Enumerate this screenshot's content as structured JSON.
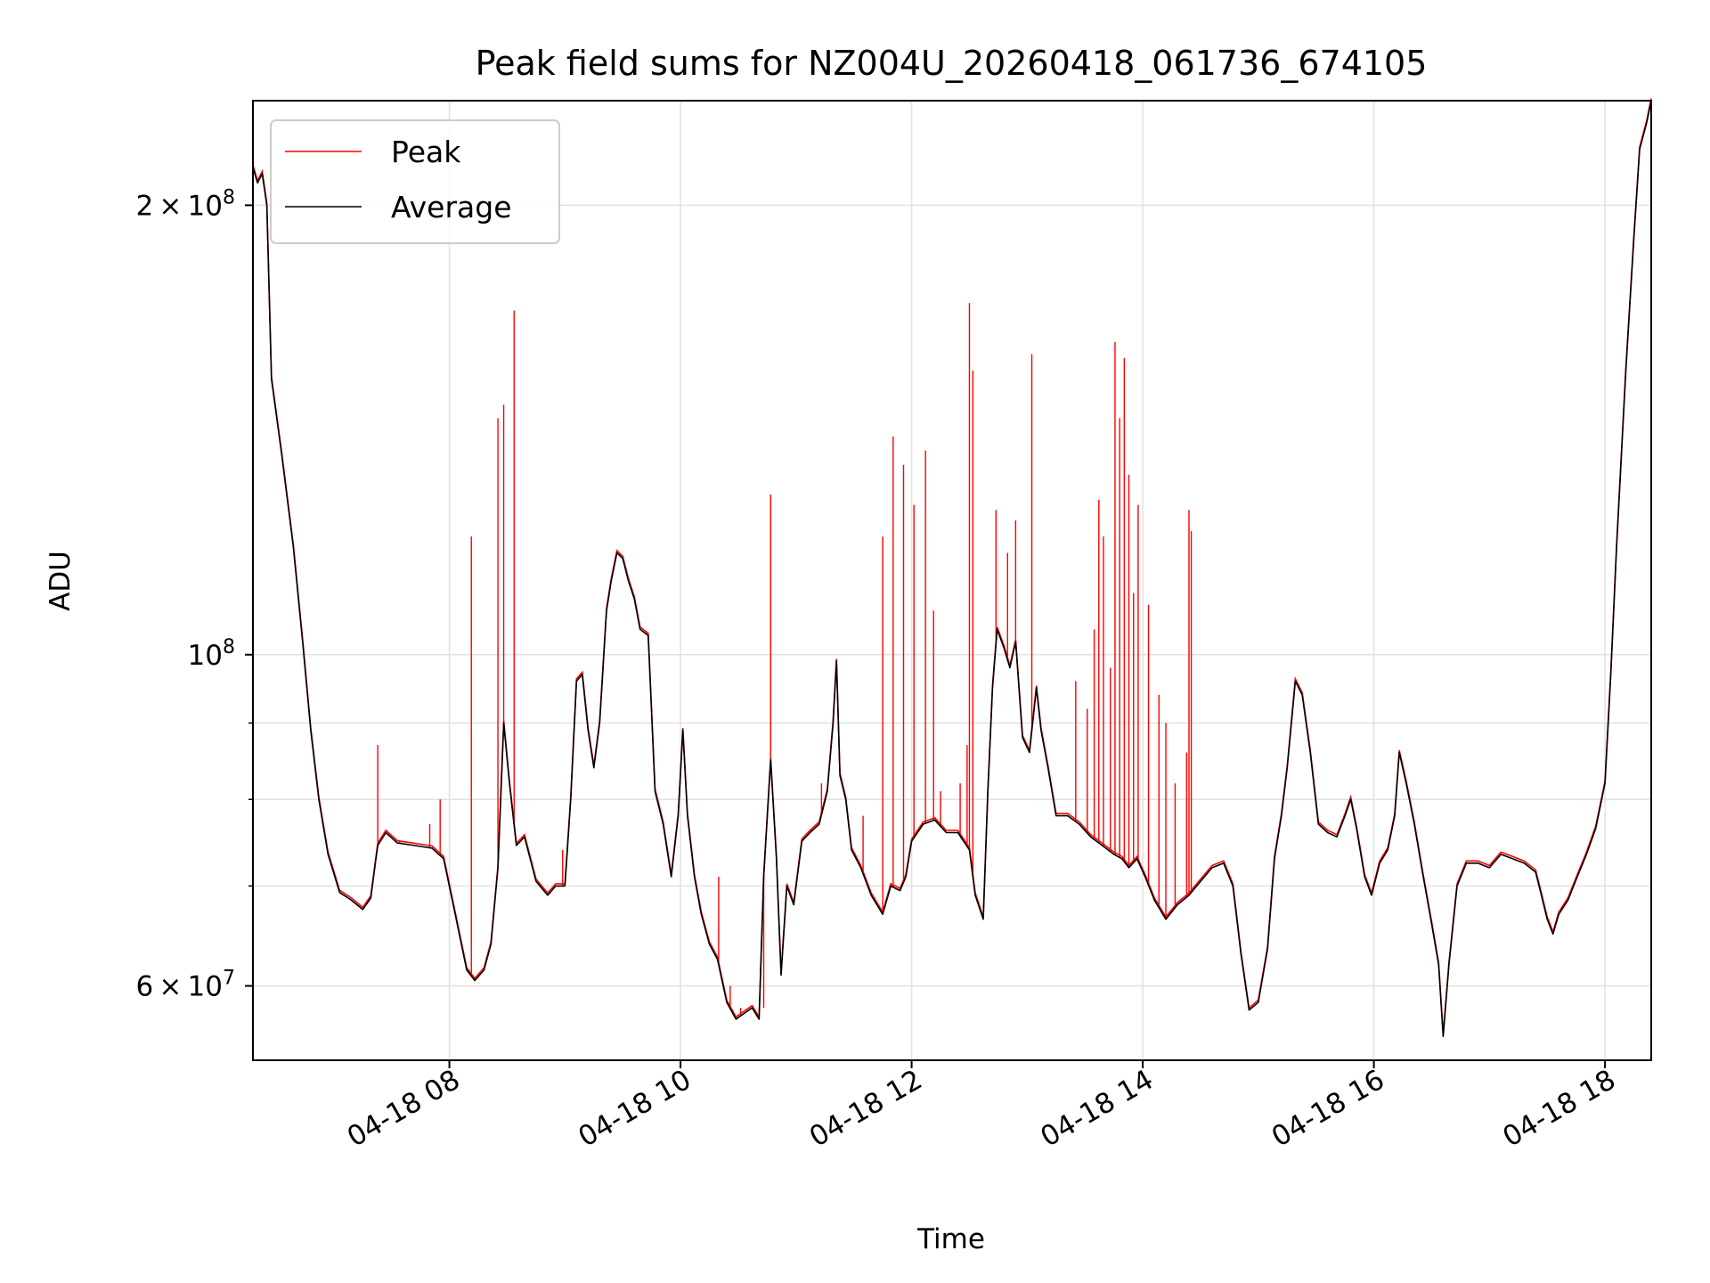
{
  "chart_data": {
    "type": "line",
    "title": "Peak field sums for NZ004U_20260418_061736_674105",
    "xlabel": "Time",
    "ylabel": "ADU",
    "yscale": "log",
    "xlim_hours": [
      6.3,
      18.4
    ],
    "ylim": [
      53500000,
      235000000
    ],
    "grid": true,
    "legend_position": "upper-left",
    "x_ticks": [
      {
        "hour": 8,
        "label": "04-18 08"
      },
      {
        "hour": 10,
        "label": "04-18 10"
      },
      {
        "hour": 12,
        "label": "04-18 12"
      },
      {
        "hour": 14,
        "label": "04-18 14"
      },
      {
        "hour": 16,
        "label": "04-18 16"
      },
      {
        "hour": 18,
        "label": "04-18 18"
      }
    ],
    "y_ticks": [
      {
        "value": 60000000,
        "mantissa": "6",
        "exponent": "7"
      },
      {
        "value": 100000000,
        "mantissa": "",
        "exponent": "8"
      },
      {
        "value": 200000000,
        "mantissa": "2",
        "exponent": "8"
      }
    ],
    "y_minor_ticks": [
      70000000,
      80000000,
      90000000
    ],
    "series": [
      {
        "name": "Peak",
        "color": "#ff0000",
        "spikes": [
          [
            7.38,
            87000000
          ],
          [
            7.57,
            75000000
          ],
          [
            7.83,
            77000000
          ],
          [
            7.92,
            80000000
          ],
          [
            8.19,
            120000000
          ],
          [
            8.42,
            144000000
          ],
          [
            8.47,
            147000000
          ],
          [
            8.56,
            170000000
          ],
          [
            8.98,
            74000000
          ],
          [
            10.33,
            71000000
          ],
          [
            10.43,
            60000000
          ],
          [
            10.52,
            58000000
          ],
          [
            10.72,
            58000000
          ],
          [
            10.78,
            128000000
          ],
          [
            11.22,
            82000000
          ],
          [
            11.58,
            78000000
          ],
          [
            11.75,
            120000000
          ],
          [
            11.84,
            140000000
          ],
          [
            11.93,
            134000000
          ],
          [
            12.02,
            126000000
          ],
          [
            12.12,
            137000000
          ],
          [
            12.19,
            107000000
          ],
          [
            12.25,
            81000000
          ],
          [
            12.42,
            82000000
          ],
          [
            12.48,
            87000000
          ],
          [
            12.5,
            172000000
          ],
          [
            12.53,
            155000000
          ],
          [
            12.73,
            125000000
          ],
          [
            12.83,
            117000000
          ],
          [
            12.9,
            123000000
          ],
          [
            13.04,
            159000000
          ],
          [
            13.42,
            96000000
          ],
          [
            13.52,
            92000000
          ],
          [
            13.58,
            104000000
          ],
          [
            13.62,
            127000000
          ],
          [
            13.66,
            120000000
          ],
          [
            13.72,
            98000000
          ],
          [
            13.76,
            162000000
          ],
          [
            13.8,
            144000000
          ],
          [
            13.84,
            158000000
          ],
          [
            13.88,
            132000000
          ],
          [
            13.92,
            110000000
          ],
          [
            13.96,
            126000000
          ],
          [
            14.05,
            108000000
          ],
          [
            14.14,
            94000000
          ],
          [
            14.2,
            90000000
          ],
          [
            14.28,
            82000000
          ],
          [
            14.38,
            86000000
          ],
          [
            14.4,
            125000000
          ],
          [
            14.42,
            121000000
          ]
        ]
      },
      {
        "name": "Average",
        "color": "#000000",
        "points": [
          [
            6.3,
            212000000
          ],
          [
            6.34,
            207000000
          ],
          [
            6.38,
            210000000
          ],
          [
            6.42,
            200000000
          ],
          [
            6.46,
            153000000
          ],
          [
            6.55,
            136000000
          ],
          [
            6.65,
            118000000
          ],
          [
            6.73,
            102000000
          ],
          [
            6.8,
            89000000
          ],
          [
            6.87,
            80000000
          ],
          [
            6.95,
            73500000
          ],
          [
            7.05,
            69300000
          ],
          [
            7.15,
            68500000
          ],
          [
            7.25,
            67500000
          ],
          [
            7.32,
            68700000
          ],
          [
            7.38,
            74500000
          ],
          [
            7.45,
            76000000
          ],
          [
            7.55,
            74800000
          ],
          [
            7.7,
            74500000
          ],
          [
            7.85,
            74200000
          ],
          [
            7.95,
            73000000
          ],
          [
            8.05,
            67000000
          ],
          [
            8.15,
            61500000
          ],
          [
            8.22,
            60500000
          ],
          [
            8.3,
            61500000
          ],
          [
            8.36,
            64000000
          ],
          [
            8.42,
            72000000
          ],
          [
            8.47,
            90000000
          ],
          [
            8.52,
            82000000
          ],
          [
            8.58,
            74500000
          ],
          [
            8.65,
            75500000
          ],
          [
            8.75,
            70500000
          ],
          [
            8.85,
            69000000
          ],
          [
            8.92,
            70000000
          ],
          [
            9.0,
            70000000
          ],
          [
            9.05,
            80000000
          ],
          [
            9.1,
            96000000
          ],
          [
            9.15,
            97000000
          ],
          [
            9.2,
            89000000
          ],
          [
            9.25,
            84000000
          ],
          [
            9.3,
            90000000
          ],
          [
            9.36,
            107000000
          ],
          [
            9.4,
            112000000
          ],
          [
            9.45,
            117000000
          ],
          [
            9.5,
            116000000
          ],
          [
            9.55,
            112000000
          ],
          [
            9.6,
            109000000
          ],
          [
            9.65,
            104000000
          ],
          [
            9.72,
            103000000
          ],
          [
            9.78,
            81000000
          ],
          [
            9.85,
            77000000
          ],
          [
            9.92,
            71000000
          ],
          [
            9.98,
            78000000
          ],
          [
            10.02,
            89000000
          ],
          [
            10.06,
            78000000
          ],
          [
            10.12,
            71000000
          ],
          [
            10.18,
            67000000
          ],
          [
            10.25,
            64000000
          ],
          [
            10.32,
            62500000
          ],
          [
            10.4,
            58500000
          ],
          [
            10.48,
            57000000
          ],
          [
            10.55,
            57500000
          ],
          [
            10.62,
            58000000
          ],
          [
            10.68,
            57000000
          ],
          [
            10.72,
            71000000
          ],
          [
            10.78,
            85000000
          ],
          [
            10.83,
            73000000
          ],
          [
            10.87,
            61000000
          ],
          [
            10.92,
            70000000
          ],
          [
            10.98,
            68000000
          ],
          [
            11.05,
            75000000
          ],
          [
            11.12,
            76000000
          ],
          [
            11.2,
            77000000
          ],
          [
            11.27,
            81000000
          ],
          [
            11.32,
            90000000
          ],
          [
            11.35,
            99000000
          ],
          [
            11.38,
            83000000
          ],
          [
            11.43,
            80000000
          ],
          [
            11.48,
            74000000
          ],
          [
            11.56,
            72000000
          ],
          [
            11.65,
            69000000
          ],
          [
            11.75,
            67000000
          ],
          [
            11.82,
            70000000
          ],
          [
            11.9,
            69500000
          ],
          [
            11.95,
            71000000
          ],
          [
            12.0,
            75000000
          ],
          [
            12.1,
            77000000
          ],
          [
            12.2,
            77500000
          ],
          [
            12.3,
            76000000
          ],
          [
            12.4,
            76000000
          ],
          [
            12.5,
            74000000
          ],
          [
            12.55,
            69000000
          ],
          [
            12.62,
            66500000
          ],
          [
            12.66,
            81000000
          ],
          [
            12.7,
            95000000
          ],
          [
            12.74,
            104000000
          ],
          [
            12.8,
            101000000
          ],
          [
            12.85,
            98000000
          ],
          [
            12.9,
            102000000
          ],
          [
            12.96,
            88000000
          ],
          [
            13.02,
            86000000
          ],
          [
            13.08,
            95000000
          ],
          [
            13.12,
            89000000
          ],
          [
            13.18,
            84000000
          ],
          [
            13.25,
            78000000
          ],
          [
            13.35,
            78000000
          ],
          [
            13.45,
            77000000
          ],
          [
            13.55,
            75500000
          ],
          [
            13.65,
            74500000
          ],
          [
            13.75,
            73500000
          ],
          [
            13.82,
            73000000
          ],
          [
            13.88,
            72000000
          ],
          [
            13.95,
            73000000
          ],
          [
            14.02,
            71000000
          ],
          [
            14.1,
            68500000
          ],
          [
            14.2,
            66500000
          ],
          [
            14.3,
            68000000
          ],
          [
            14.4,
            69000000
          ],
          [
            14.5,
            70500000
          ],
          [
            14.6,
            72000000
          ],
          [
            14.7,
            72500000
          ],
          [
            14.78,
            70000000
          ],
          [
            14.85,
            63000000
          ],
          [
            14.92,
            57800000
          ],
          [
            15.0,
            58500000
          ],
          [
            15.08,
            63500000
          ],
          [
            15.14,
            73000000
          ],
          [
            15.2,
            78000000
          ],
          [
            15.25,
            84000000
          ],
          [
            15.32,
            96000000
          ],
          [
            15.38,
            94000000
          ],
          [
            15.45,
            86000000
          ],
          [
            15.52,
            77000000
          ],
          [
            15.6,
            76000000
          ],
          [
            15.68,
            75500000
          ],
          [
            15.75,
            78000000
          ],
          [
            15.8,
            80000000
          ],
          [
            15.85,
            76500000
          ],
          [
            15.92,
            71000000
          ],
          [
            15.98,
            69000000
          ],
          [
            16.05,
            72500000
          ],
          [
            16.12,
            74000000
          ],
          [
            16.18,
            78000000
          ],
          [
            16.22,
            86000000
          ],
          [
            16.28,
            82000000
          ],
          [
            16.35,
            77000000
          ],
          [
            16.42,
            71500000
          ],
          [
            16.5,
            66000000
          ],
          [
            16.56,
            62000000
          ],
          [
            16.6,
            55500000
          ],
          [
            16.65,
            62000000
          ],
          [
            16.72,
            70000000
          ],
          [
            16.8,
            72500000
          ],
          [
            16.9,
            72500000
          ],
          [
            17.0,
            72000000
          ],
          [
            17.1,
            73500000
          ],
          [
            17.2,
            73000000
          ],
          [
            17.3,
            72500000
          ],
          [
            17.4,
            71500000
          ],
          [
            17.45,
            69000000
          ],
          [
            17.5,
            66500000
          ],
          [
            17.55,
            65000000
          ],
          [
            17.6,
            67000000
          ],
          [
            17.68,
            68500000
          ],
          [
            17.76,
            71000000
          ],
          [
            17.84,
            73500000
          ],
          [
            17.92,
            76500000
          ],
          [
            18.0,
            82000000
          ],
          [
            18.05,
            97000000
          ],
          [
            18.1,
            118000000
          ],
          [
            18.18,
            155000000
          ],
          [
            18.25,
            190000000
          ],
          [
            18.3,
            218000000
          ],
          [
            18.36,
            227000000
          ],
          [
            18.4,
            235000000
          ]
        ]
      }
    ]
  }
}
